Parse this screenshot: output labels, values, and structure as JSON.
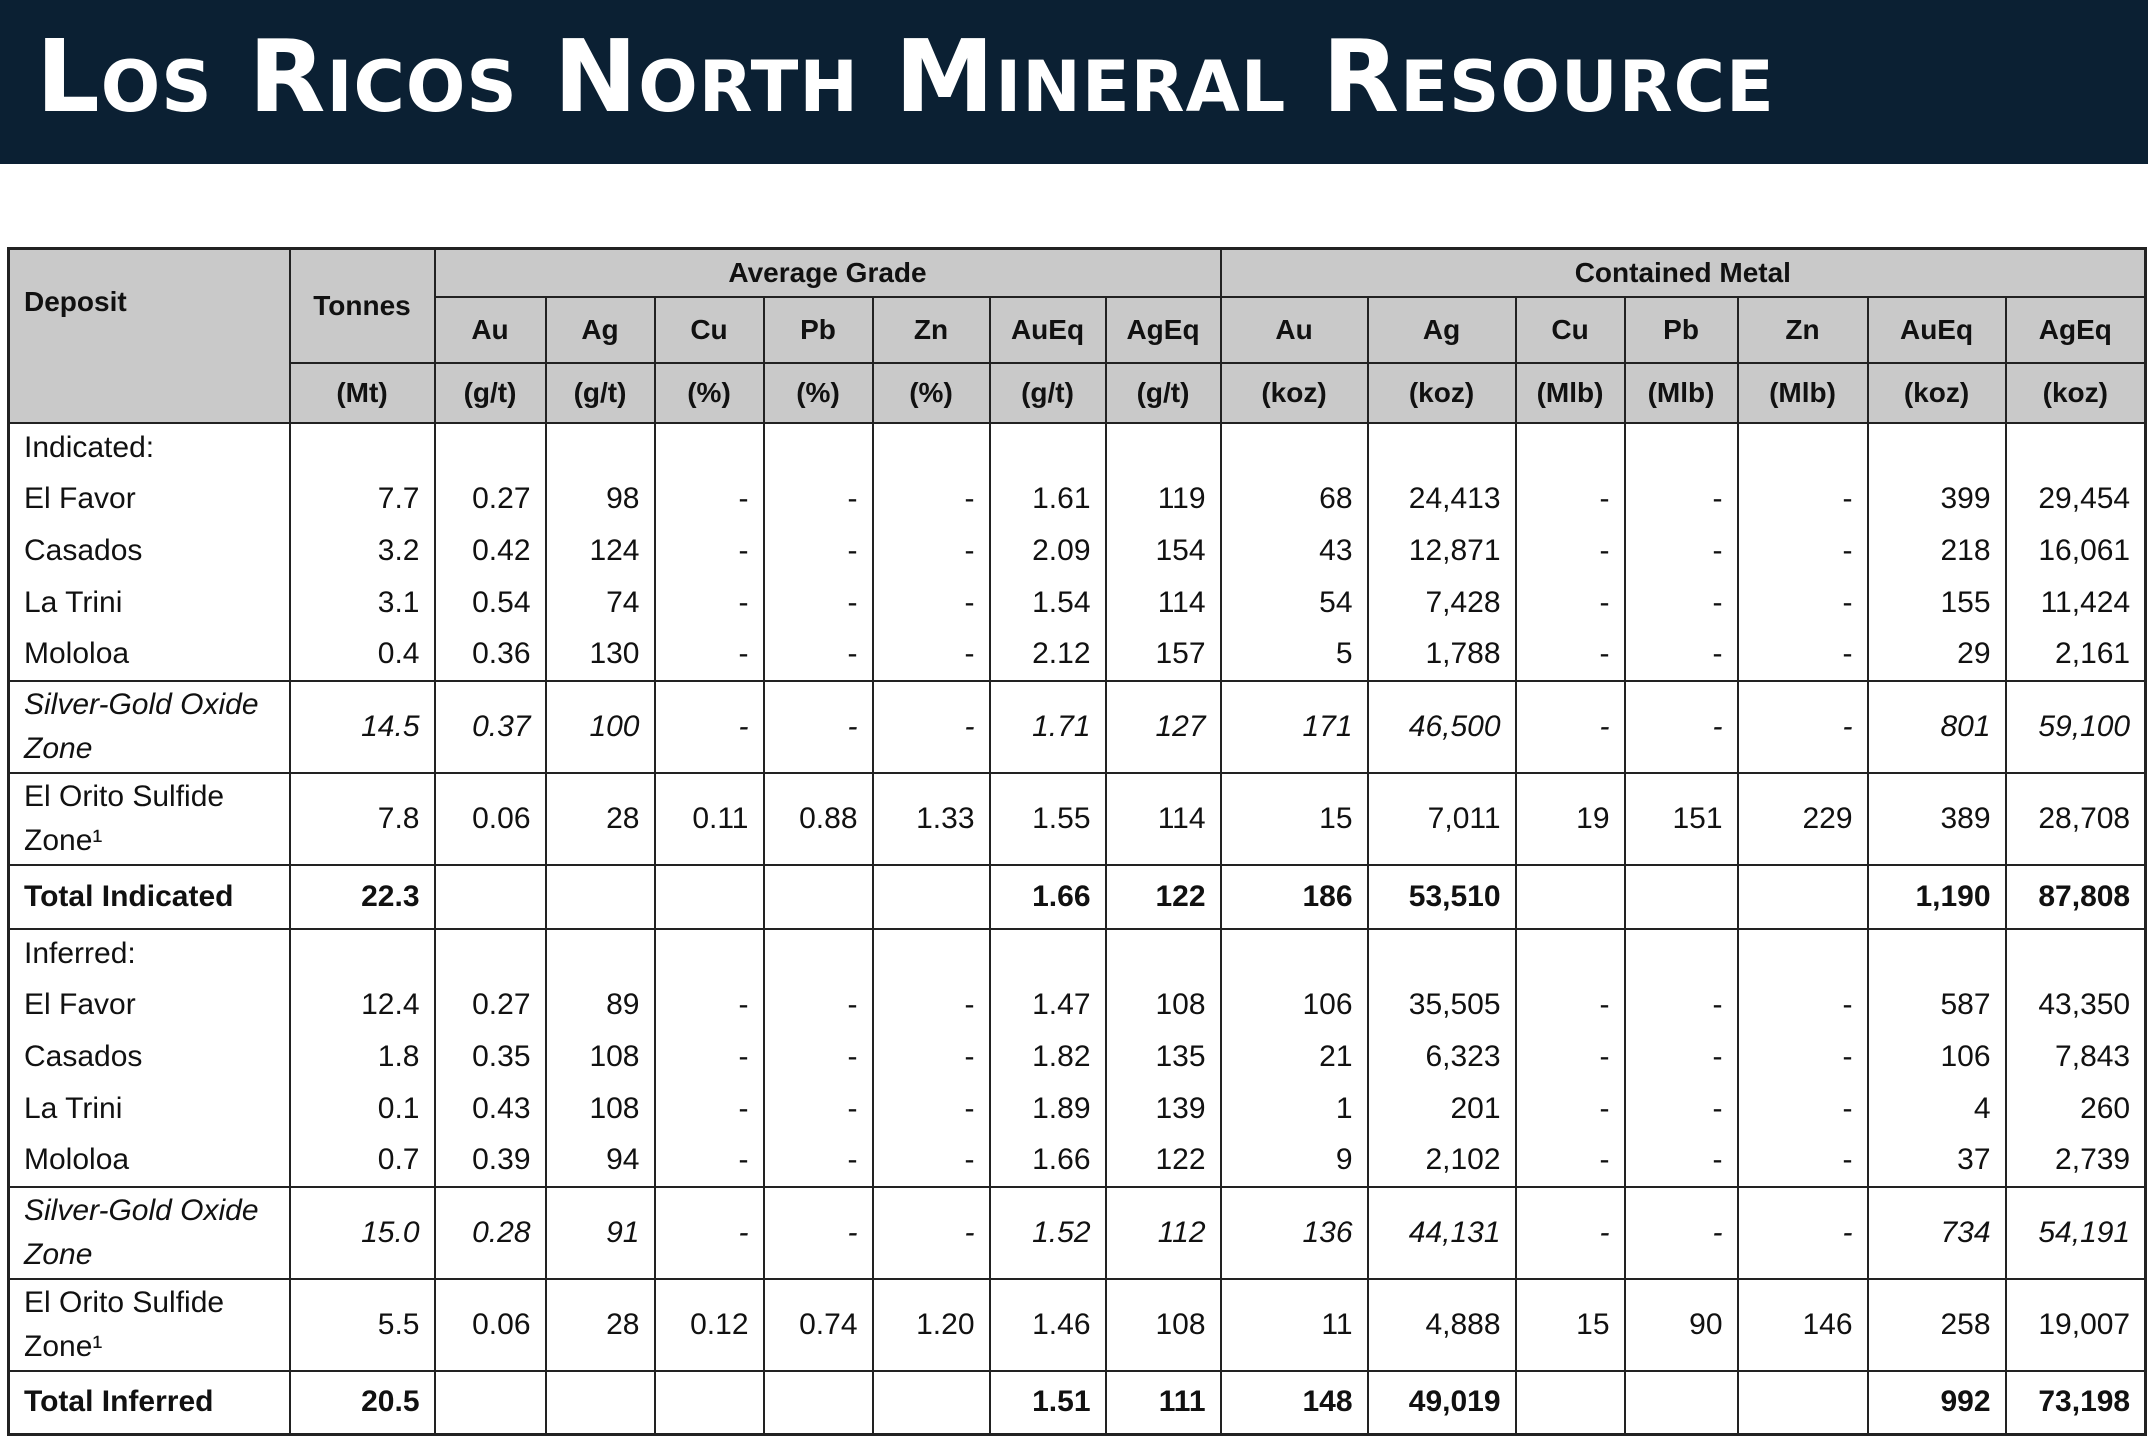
{
  "header": {
    "title": "Los Ricos North Mineral Resource"
  },
  "table": {
    "head": {
      "deposit": "Deposit",
      "tonnes": "Tonnes",
      "groups": [
        "Average Grade",
        "Contained Metal"
      ],
      "elements": [
        "Au",
        "Ag",
        "Cu",
        "Pb",
        "Zn",
        "AuEq",
        "AgEq",
        "Au",
        "Ag",
        "Cu",
        "Pb",
        "Zn",
        "AuEq",
        "AgEq"
      ],
      "units": [
        "(Mt)",
        "(g/t)",
        "(g/t)",
        "(%)",
        "(%)",
        "(%)",
        "(g/t)",
        "(g/t)",
        "(koz)",
        "(koz)",
        "(Mlb)",
        "(Mlb)",
        "(Mlb)",
        "(koz)",
        "(koz)"
      ]
    },
    "sections": [
      {
        "label": "Indicated:",
        "deposits": [
          {
            "name": "El Favor",
            "values": [
              "7.7",
              "0.27",
              "98",
              "-",
              "-",
              "-",
              "1.61",
              "119",
              "68",
              "24,413",
              "-",
              "-",
              "-",
              "399",
              "29,454"
            ]
          },
          {
            "name": "Casados",
            "values": [
              "3.2",
              "0.42",
              "124",
              "-",
              "-",
              "-",
              "2.09",
              "154",
              "43",
              "12,871",
              "-",
              "-",
              "-",
              "218",
              "16,061"
            ]
          },
          {
            "name": "La Trini",
            "values": [
              "3.1",
              "0.54",
              "74",
              "-",
              "-",
              "-",
              "1.54",
              "114",
              "54",
              "7,428",
              "-",
              "-",
              "-",
              "155",
              "11,424"
            ]
          },
          {
            "name": "Mololoa",
            "values": [
              "0.4",
              "0.36",
              "130",
              "-",
              "-",
              "-",
              "2.12",
              "157",
              "5",
              "1,788",
              "-",
              "-",
              "-",
              "29",
              "2,161"
            ]
          }
        ],
        "oxide_total": {
          "name": "Silver-Gold Oxide Zone",
          "values": [
            "14.5",
            "0.37",
            "100",
            "-",
            "-",
            "-",
            "1.71",
            "127",
            "171",
            "46,500",
            "-",
            "-",
            "-",
            "801",
            "59,100"
          ]
        },
        "sulfide": {
          "name": "El Orito Sulfide Zone¹",
          "values": [
            "7.8",
            "0.06",
            "28",
            "0.11",
            "0.88",
            "1.33",
            "1.55",
            "114",
            "15",
            "7,011",
            "19",
            "151",
            "229",
            "389",
            "28,708"
          ]
        },
        "total": {
          "name": "Total Indicated",
          "values": [
            "22.3",
            null,
            null,
            null,
            null,
            null,
            "1.66",
            "122",
            "186",
            "53,510",
            null,
            null,
            null,
            "1,190",
            "87,808"
          ]
        }
      },
      {
        "label": "Inferred:",
        "deposits": [
          {
            "name": "El Favor",
            "values": [
              "12.4",
              "0.27",
              "89",
              "-",
              "-",
              "-",
              "1.47",
              "108",
              "106",
              "35,505",
              "-",
              "-",
              "-",
              "587",
              "43,350"
            ]
          },
          {
            "name": "Casados",
            "values": [
              "1.8",
              "0.35",
              "108",
              "-",
              "-",
              "-",
              "1.82",
              "135",
              "21",
              "6,323",
              "-",
              "-",
              "-",
              "106",
              "7,843"
            ]
          },
          {
            "name": "La Trini",
            "values": [
              "0.1",
              "0.43",
              "108",
              "-",
              "-",
              "-",
              "1.89",
              "139",
              "1",
              "201",
              "-",
              "-",
              "-",
              "4",
              "260"
            ]
          },
          {
            "name": "Mololoa",
            "values": [
              "0.7",
              "0.39",
              "94",
              "-",
              "-",
              "-",
              "1.66",
              "122",
              "9",
              "2,102",
              "-",
              "-",
              "-",
              "37",
              "2,739"
            ]
          }
        ],
        "oxide_total": {
          "name": "Silver-Gold Oxide Zone",
          "values": [
            "15.0",
            "0.28",
            "91",
            "-",
            "-",
            "-",
            "1.52",
            "112",
            "136",
            "44,131",
            "-",
            "-",
            "-",
            "734",
            "54,191"
          ]
        },
        "sulfide": {
          "name": "El Orito Sulfide Zone¹",
          "values": [
            "5.5",
            "0.06",
            "28",
            "0.12",
            "0.74",
            "1.20",
            "1.46",
            "108",
            "11",
            "4,888",
            "15",
            "90",
            "146",
            "258",
            "19,007"
          ]
        },
        "total": {
          "name": "Total Inferred",
          "values": [
            "20.5",
            null,
            null,
            null,
            null,
            null,
            "1.51",
            "111",
            "148",
            "49,019",
            null,
            null,
            null,
            "992",
            "73,198"
          ]
        }
      }
    ]
  }
}
